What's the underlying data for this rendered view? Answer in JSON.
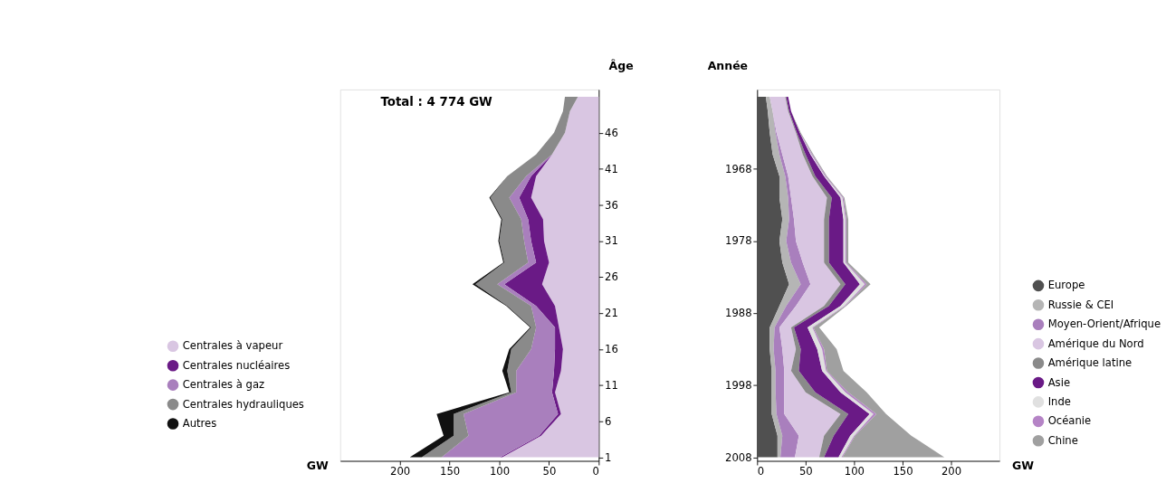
{
  "chart_data": [
    {
      "type": "area",
      "stacked": true,
      "orientation": "horizontal",
      "annotations": [
        "Total : 4 774 GW"
      ],
      "xlabel": "GW",
      "ylabel": "Âge",
      "legend": "bottom left",
      "x": [
        1,
        4,
        7,
        10,
        13,
        16,
        19,
        22,
        25,
        28,
        31,
        34,
        37,
        40,
        43,
        46,
        49,
        51
      ],
      "xlim": [
        260,
        0
      ],
      "xticks": [
        200,
        150,
        100,
        50,
        0
      ],
      "ylim": [
        0.5,
        52
      ],
      "yticks": [
        1,
        6,
        11,
        16,
        21,
        26,
        31,
        36,
        41,
        46
      ],
      "series": [
        {
          "name": "Centrales à vapeur",
          "color": "#d9c6e2",
          "values": [
            97,
            58,
            38,
            44,
            38,
            36,
            40,
            44,
            57,
            50,
            55,
            56,
            68,
            63,
            47,
            34,
            29,
            21
          ]
        },
        {
          "name": "Centrales nucléaires",
          "color": "#6a1a86",
          "values": [
            2,
            2,
            3,
            3,
            7,
            8,
            4,
            19,
            38,
            13,
            13,
            15,
            12,
            5,
            0,
            0,
            0,
            0
          ]
        },
        {
          "name": "Centrales à gaz",
          "color": "#a97fbd",
          "values": [
            59,
            71,
            95,
            36,
            38,
            24,
            19,
            5,
            7,
            8,
            7,
            7,
            10,
            5,
            0,
            0,
            0,
            0
          ]
        },
        {
          "name": "Centrales hydrauliques",
          "color": "#8a8a8a",
          "values": [
            20,
            15,
            10,
            5,
            9,
            20,
            5,
            24,
            22,
            24,
            25,
            19,
            19,
            19,
            16,
            11,
            7,
            13
          ]
        },
        {
          "name": "Autres",
          "color": "#111111",
          "values": [
            12,
            10,
            17,
            2,
            5,
            2,
            1,
            1,
            3,
            1,
            1,
            1,
            1,
            0,
            0,
            0,
            0,
            0
          ]
        }
      ]
    },
    {
      "type": "area",
      "stacked": true,
      "orientation": "horizontal",
      "xlabel": "GW",
      "ylabel": "Année",
      "legend": "right",
      "x": [
        2008,
        2005,
        2002,
        1999,
        1996,
        1993,
        1990,
        1987,
        1984,
        1981,
        1978,
        1975,
        1972,
        1969,
        1966,
        1963,
        1960,
        1958
      ],
      "xlim": [
        0,
        250
      ],
      "xticks": [
        0,
        50,
        100,
        150,
        200
      ],
      "ylim": [
        2008.5,
        1957
      ],
      "yticks": [
        1968,
        1978,
        1988,
        1998,
        2008
      ],
      "series": [
        {
          "name": "Europe",
          "color": "#505050",
          "values": [
            21,
            21,
            15,
            15,
            15,
            13,
            13,
            23,
            33,
            26,
            23,
            26,
            23,
            23,
            16,
            13,
            11,
            9
          ]
        },
        {
          "name": "Russie & CEI",
          "color": "#b5b5b5",
          "values": [
            3,
            5,
            5,
            4,
            4,
            4,
            5,
            7,
            12,
            9,
            7,
            7,
            9,
            6,
            7,
            6,
            5,
            4
          ]
        },
        {
          "name": "Moyen-Orient/Afrique",
          "color": "#a97fbd",
          "values": [
            15,
            17,
            8,
            9,
            9,
            9,
            5,
            10,
            10,
            12,
            10,
            5,
            3,
            3,
            3,
            1,
            0,
            0
          ]
        },
        {
          "name": "Amérique du Nord",
          "color": "#d9c6e2",
          "values": [
            25,
            26,
            58,
            22,
            7,
            14,
            12,
            29,
            31,
            22,
            29,
            31,
            37,
            25,
            21,
            20,
            16,
            16
          ]
        },
        {
          "name": "Amérique latine",
          "color": "#8a8a8a",
          "values": [
            5,
            10,
            8,
            10,
            8,
            5,
            3,
            5,
            5,
            5,
            5,
            5,
            5,
            3,
            3,
            1,
            1,
            1
          ]
        },
        {
          "name": "Asie",
          "color": "#6a1a86",
          "values": [
            15,
            17,
            22,
            26,
            24,
            17,
            14,
            12,
            15,
            15,
            15,
            15,
            9,
            9,
            5,
            3,
            2,
            2
          ]
        },
        {
          "name": "Inde",
          "color": "#e0e0e0",
          "values": [
            3,
            4,
            4,
            5,
            4,
            5,
            5,
            4,
            5,
            2,
            2,
            2,
            2,
            1,
            1,
            0,
            0,
            0
          ]
        },
        {
          "name": "Océanie",
          "color": "#b584c6",
          "values": [
            1,
            1,
            3,
            3,
            1,
            2,
            1,
            1,
            2,
            1,
            1,
            1,
            1,
            1,
            1,
            0,
            0,
            0
          ]
        },
        {
          "name": "Chine",
          "color": "#a0a0a0",
          "values": [
            105,
            58,
            10,
            19,
            17,
            13,
            6,
            1,
            4,
            2,
            2,
            2,
            1,
            1,
            1,
            1,
            0,
            0
          ]
        }
      ]
    }
  ]
}
